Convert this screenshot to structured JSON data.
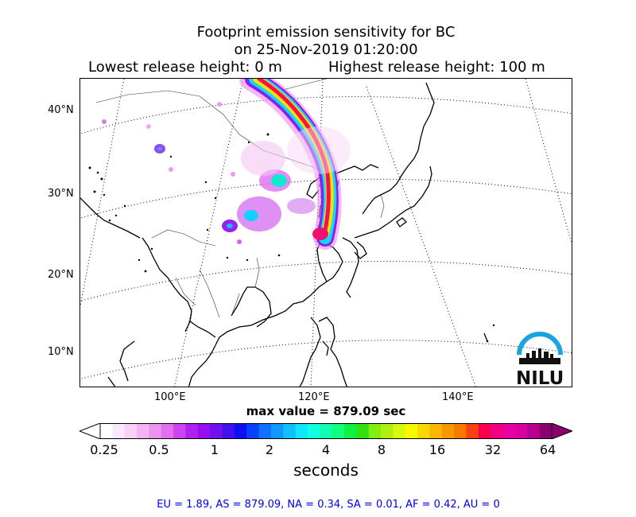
{
  "title": {
    "line1": "Footprint emission sensitivity for BC",
    "line2": "on 25-Nov-2019 01:20:00",
    "lowest": "Lowest release height: 0 m",
    "highest": "Highest release height: 100 m"
  },
  "map": {
    "lat_labels": [
      "40°N",
      "30°N",
      "20°N",
      "10°N"
    ],
    "lon_labels": [
      "100°E",
      "120°E",
      "140°E"
    ],
    "logo_text": "NILU",
    "logo_color": "#1aa3de"
  },
  "max_value": "max value = 879.09 sec",
  "colorbar": {
    "ticks": [
      "0.25",
      "0.5",
      "1",
      "2",
      "4",
      "8",
      "16",
      "32",
      "64"
    ],
    "unit": "seconds",
    "colors": [
      "#ffffff",
      "#fce8fc",
      "#f8d0f8",
      "#f2b4f2",
      "#ea94ee",
      "#e070ee",
      "#cc44ee",
      "#b020ee",
      "#9410ee",
      "#7010ee",
      "#4010ee",
      "#1010ee",
      "#0a40ff",
      "#1070ff",
      "#1098ff",
      "#10c0ff",
      "#10e8ff",
      "#10ffe0",
      "#10ffb0",
      "#10ff80",
      "#10f040",
      "#30e010",
      "#80f010",
      "#b0f010",
      "#d8f810",
      "#f8f800",
      "#f8d800",
      "#f8b800",
      "#f89800",
      "#f87800",
      "#f84010",
      "#f80050",
      "#f00080",
      "#e800a0",
      "#d800a0",
      "#b80090",
      "#8a0070"
    ]
  },
  "footer": "EU = 1.89,  AS = 879.09,  NA = 0.34,  SA = 0.01,  AF = 0.42,  AU = 0"
}
